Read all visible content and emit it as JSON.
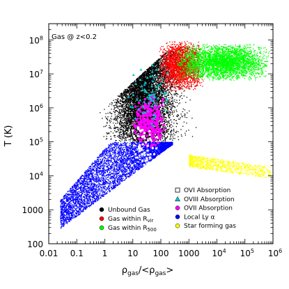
{
  "chart_data": {
    "type": "scatter",
    "annotation": "Gas @ z<0.2",
    "xlabel": "ρ_gas/<ρ_gas>",
    "ylabel": "T (K)",
    "x_scale": "log",
    "y_scale": "log",
    "xlim": [
      0.01,
      1000000
    ],
    "ylim": [
      100,
      300000000
    ],
    "x_ticks": [
      {
        "value": 0.01,
        "label": "0.01"
      },
      {
        "value": 0.1,
        "label": "0.1"
      },
      {
        "value": 1,
        "label": "1"
      },
      {
        "value": 10,
        "label": "10"
      },
      {
        "value": 100,
        "label": "100"
      },
      {
        "value": 1000,
        "label": "1000"
      },
      {
        "value": 10000,
        "label": "10",
        "sup": "4"
      },
      {
        "value": 100000,
        "label": "10",
        "sup": "5"
      },
      {
        "value": 1000000,
        "label": "10",
        "sup": "6"
      }
    ],
    "y_ticks": [
      {
        "value": 100,
        "label": "100"
      },
      {
        "value": 1000,
        "label": "1000"
      },
      {
        "value": 10000,
        "label": "10",
        "sup": "4"
      },
      {
        "value": 100000,
        "label": "10",
        "sup": "5"
      },
      {
        "value": 1000000,
        "label": "10",
        "sup": "6"
      },
      {
        "value": 10000000,
        "label": "10",
        "sup": "7"
      },
      {
        "value": 100000000,
        "label": "10",
        "sup": "8"
      }
    ],
    "legend_left": [
      {
        "label": "Unbound Gas",
        "color": "#000000",
        "marker": "circle"
      },
      {
        "label": "Gas within R",
        "sub": "vir",
        "color": "#ff0000",
        "marker": "circle"
      },
      {
        "label": "Gas within R",
        "sub": "500",
        "color": "#00ff00",
        "marker": "circle"
      }
    ],
    "legend_right": [
      {
        "label": "OVI Absorption",
        "color": "#ffffff",
        "marker": "square"
      },
      {
        "label": "OVIII Absorption",
        "color": "#00cccc",
        "marker": "triangle"
      },
      {
        "label": "OVII Absorption",
        "color": "#ff00ff",
        "marker": "circle"
      },
      {
        "label": "Local Ly α",
        "color": "#0000ff",
        "marker": "circle"
      },
      {
        "label": "Star forming gas",
        "color": "#ffff00",
        "marker": "circle"
      }
    ],
    "series": [
      {
        "name": "Unbound Gas",
        "color": "#000000",
        "count": 7000,
        "regions": [
          {
            "logx": [
              -0.3,
              3.3
            ],
            "logy": [
              5.0,
              7.6
            ]
          },
          {
            "logx": [
              0.3,
              2.6
            ],
            "logy": [
              5.5,
              7.2
            ]
          }
        ]
      },
      {
        "name": "Local Ly α",
        "color": "#0000ff",
        "count": 5000,
        "regions": [
          {
            "logx": [
              -1.6,
              2.4
            ],
            "logy": [
              2.6,
              5.0
            ]
          }
        ]
      },
      {
        "name": "Gas within R_vir",
        "color": "#ff0000",
        "count": 2600,
        "regions": [
          {
            "logx": [
              1.9,
              3.5
            ],
            "logy": [
              6.5,
              8.0
            ]
          }
        ]
      },
      {
        "name": "Gas within R_500",
        "color": "#00ff00",
        "count": 3600,
        "regions": [
          {
            "logx": [
              2.5,
              5.9
            ],
            "logy": [
              6.8,
              7.9
            ]
          }
        ]
      },
      {
        "name": "Star forming gas",
        "color": "#ffff00",
        "count": 900,
        "regions": [
          {
            "logx": [
              3.0,
              5.9
            ],
            "logy": [
              3.9,
              4.5
            ]
          }
        ]
      },
      {
        "name": "OVII Absorption",
        "color": "#ff00ff",
        "count": 260,
        "regions": [
          {
            "logx": [
              1.0,
              2.2
            ],
            "logy": [
              4.8,
              6.4
            ]
          }
        ]
      },
      {
        "name": "OVIII Absorption",
        "color": "#00cccc",
        "count": 70,
        "regions": [
          {
            "logx": [
              0.8,
              2.5
            ],
            "logy": [
              5.3,
              7.4
            ]
          }
        ]
      },
      {
        "name": "OVI Absorption",
        "color": "#ffffff",
        "count": 60,
        "regions": [
          {
            "logx": [
              0.8,
              2.0
            ],
            "logy": [
              4.0,
              5.6
            ]
          }
        ]
      }
    ]
  }
}
